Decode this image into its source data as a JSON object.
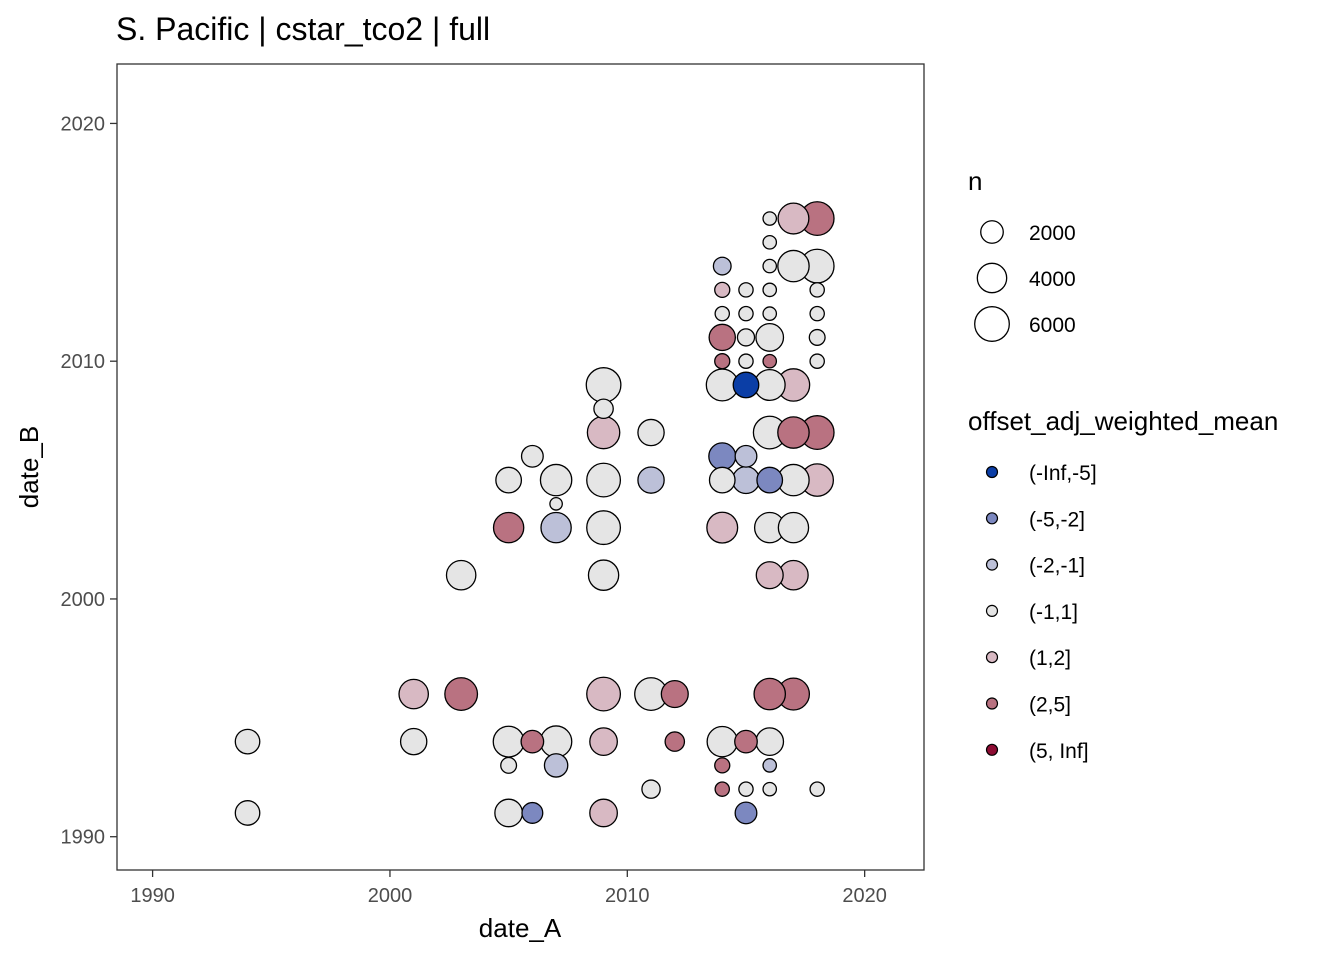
{
  "chart_data": {
    "type": "scatter",
    "title": "S. Pacific | cstar_tco2 | full",
    "xlabel": "date_A",
    "ylabel": "date_B",
    "xlim": [
      1988.5,
      2022.5
    ],
    "ylim": [
      1988.6,
      2022.5
    ],
    "x_ticks": [
      1990,
      2000,
      2010,
      2020
    ],
    "y_ticks": [
      1990,
      2000,
      2010,
      2020
    ],
    "grid": false,
    "legend_position": "right",
    "size_legend": {
      "title": "n",
      "entries": [
        {
          "label": "2000",
          "value": 2000
        },
        {
          "label": "4000",
          "value": 4000
        },
        {
          "label": "6000",
          "value": 6000
        }
      ]
    },
    "color_legend": {
      "title": "offset_adj_weighted_mean",
      "entries": [
        {
          "label": "(-Inf,-5]",
          "color": "#0b3ea6"
        },
        {
          "label": "(-5,-2]",
          "color": "#7c88c0"
        },
        {
          "label": "(-2,-1]",
          "color": "#bcc0d8"
        },
        {
          "label": "(-1,1]",
          "color": "#e5e5e5"
        },
        {
          "label": "(1,2]",
          "color": "#d8b9c3"
        },
        {
          "label": "(2,5]",
          "color": "#b97281"
        },
        {
          "label": "(5, Inf]",
          "color": "#8d0c33"
        }
      ]
    },
    "points": [
      {
        "x": 1994,
        "y": 1994,
        "n": 2500,
        "category": "(-1,1]"
      },
      {
        "x": 1994,
        "y": 1991,
        "n": 2500,
        "category": "(-1,1]"
      },
      {
        "x": 2001,
        "y": 1996,
        "n": 4000,
        "category": "(1,2]"
      },
      {
        "x": 2001,
        "y": 1994,
        "n": 3000,
        "category": "(-1,1]"
      },
      {
        "x": 2003,
        "y": 2001,
        "n": 4000,
        "category": "(-1,1]"
      },
      {
        "x": 2003,
        "y": 1996,
        "n": 5200,
        "category": "(2,5]"
      },
      {
        "x": 2005,
        "y": 2003,
        "n": 4300,
        "category": "(2,5]"
      },
      {
        "x": 2005,
        "y": 2005,
        "n": 2800,
        "category": "(-1,1]"
      },
      {
        "x": 2005,
        "y": 1994,
        "n": 4500,
        "category": "(-1,1]"
      },
      {
        "x": 2005,
        "y": 1993,
        "n": 700,
        "category": "(-1,1]"
      },
      {
        "x": 2005,
        "y": 1991,
        "n": 3400,
        "category": "(-1,1]"
      },
      {
        "x": 2006,
        "y": 2006,
        "n": 1800,
        "category": "(-1,1]"
      },
      {
        "x": 2006,
        "y": 1994,
        "n": 2000,
        "category": "(2,5]"
      },
      {
        "x": 2006,
        "y": 1991,
        "n": 1600,
        "category": "(-5,-2]"
      },
      {
        "x": 2007,
        "y": 2005,
        "n": 4700,
        "category": "(-1,1]"
      },
      {
        "x": 2007,
        "y": 2004,
        "n": 300,
        "category": "(-1,1]"
      },
      {
        "x": 2007,
        "y": 2003,
        "n": 4300,
        "category": "(-2,-1]"
      },
      {
        "x": 2007,
        "y": 1994,
        "n": 4700,
        "category": "(-1,1]"
      },
      {
        "x": 2007,
        "y": 1993,
        "n": 2200,
        "category": "(-2,-1]"
      },
      {
        "x": 2009,
        "y": 2009,
        "n": 6000,
        "category": "(-1,1]"
      },
      {
        "x": 2009,
        "y": 2008,
        "n": 1300,
        "category": "(-1,1]"
      },
      {
        "x": 2009,
        "y": 2007,
        "n": 5100,
        "category": "(1,2]"
      },
      {
        "x": 2009,
        "y": 2005,
        "n": 5600,
        "category": "(-1,1]"
      },
      {
        "x": 2009,
        "y": 2003,
        "n": 5600,
        "category": "(-1,1]"
      },
      {
        "x": 2009,
        "y": 2001,
        "n": 4300,
        "category": "(-1,1]"
      },
      {
        "x": 2009,
        "y": 1996,
        "n": 5600,
        "category": "(1,2]"
      },
      {
        "x": 2009,
        "y": 1994,
        "n": 3400,
        "category": "(1,2]"
      },
      {
        "x": 2009,
        "y": 1991,
        "n": 3400,
        "category": "(1,2]"
      },
      {
        "x": 2011,
        "y": 2007,
        "n": 3000,
        "category": "(-1,1]"
      },
      {
        "x": 2011,
        "y": 2005,
        "n": 3000,
        "category": "(-2,-1]"
      },
      {
        "x": 2011,
        "y": 1996,
        "n": 5200,
        "category": "(-1,1]"
      },
      {
        "x": 2011,
        "y": 1992,
        "n": 1100,
        "category": "(-1,1]"
      },
      {
        "x": 2012,
        "y": 1996,
        "n": 3200,
        "category": "(2,5]"
      },
      {
        "x": 2012,
        "y": 1994,
        "n": 1300,
        "category": "(2,5]"
      },
      {
        "x": 2014,
        "y": 2014,
        "n": 1000,
        "category": "(-2,-1]"
      },
      {
        "x": 2014,
        "y": 2013,
        "n": 600,
        "category": "(1,2]"
      },
      {
        "x": 2014,
        "y": 2012,
        "n": 500,
        "category": "(-1,1]"
      },
      {
        "x": 2014,
        "y": 2011,
        "n": 3000,
        "category": "(2,5]"
      },
      {
        "x": 2014,
        "y": 2010,
        "n": 600,
        "category": "(2,5]"
      },
      {
        "x": 2014,
        "y": 2009,
        "n": 4900,
        "category": "(-1,1]"
      },
      {
        "x": 2014,
        "y": 2006,
        "n": 3200,
        "category": "(-5,-2]"
      },
      {
        "x": 2014,
        "y": 2005,
        "n": 2800,
        "category": "(-1,1]"
      },
      {
        "x": 2014,
        "y": 2003,
        "n": 4500,
        "category": "(1,2]"
      },
      {
        "x": 2014,
        "y": 1994,
        "n": 4300,
        "category": "(-1,1]"
      },
      {
        "x": 2014,
        "y": 1993,
        "n": 600,
        "category": "(2,5]"
      },
      {
        "x": 2014,
        "y": 1992,
        "n": 500,
        "category": "(2,5]"
      },
      {
        "x": 2015,
        "y": 2013,
        "n": 500,
        "category": "(-1,1]"
      },
      {
        "x": 2015,
        "y": 2012,
        "n": 500,
        "category": "(-1,1]"
      },
      {
        "x": 2015,
        "y": 2011,
        "n": 900,
        "category": "(-1,1]"
      },
      {
        "x": 2015,
        "y": 2010,
        "n": 500,
        "category": "(-1,1]"
      },
      {
        "x": 2015,
        "y": 2009,
        "n": 2800,
        "category": "(-Inf,-5]"
      },
      {
        "x": 2015,
        "y": 2006,
        "n": 1800,
        "category": "(-2,-1]"
      },
      {
        "x": 2015,
        "y": 2005,
        "n": 3200,
        "category": "(-2,-1]"
      },
      {
        "x": 2015,
        "y": 1994,
        "n": 2000,
        "category": "(2,5]"
      },
      {
        "x": 2015,
        "y": 1992,
        "n": 500,
        "category": "(-1,1]"
      },
      {
        "x": 2015,
        "y": 1991,
        "n": 1800,
        "category": "(-5,-2]"
      },
      {
        "x": 2016,
        "y": 2016,
        "n": 400,
        "category": "(-1,1]"
      },
      {
        "x": 2016,
        "y": 2015,
        "n": 400,
        "category": "(-1,1]"
      },
      {
        "x": 2016,
        "y": 2014,
        "n": 400,
        "category": "(-1,1]"
      },
      {
        "x": 2016,
        "y": 2013,
        "n": 400,
        "category": "(-1,1]"
      },
      {
        "x": 2016,
        "y": 2012,
        "n": 400,
        "category": "(-1,1]"
      },
      {
        "x": 2016,
        "y": 2011,
        "n": 3400,
        "category": "(-1,1]"
      },
      {
        "x": 2016,
        "y": 2010,
        "n": 400,
        "category": "(2,5]"
      },
      {
        "x": 2016,
        "y": 2009,
        "n": 4500,
        "category": "(-1,1]"
      },
      {
        "x": 2016,
        "y": 2007,
        "n": 5200,
        "category": "(-1,1]"
      },
      {
        "x": 2016,
        "y": 2005,
        "n": 2800,
        "category": "(-5,-2]"
      },
      {
        "x": 2016,
        "y": 2003,
        "n": 4300,
        "category": "(-1,1]"
      },
      {
        "x": 2016,
        "y": 2001,
        "n": 3200,
        "category": "(1,2]"
      },
      {
        "x": 2016,
        "y": 1996,
        "n": 4700,
        "category": "(2,5]"
      },
      {
        "x": 2016,
        "y": 1994,
        "n": 3400,
        "category": "(-1,1]"
      },
      {
        "x": 2016,
        "y": 1993,
        "n": 400,
        "category": "(-2,-1]"
      },
      {
        "x": 2016,
        "y": 1992,
        "n": 400,
        "category": "(-1,1]"
      },
      {
        "x": 2017,
        "y": 2016,
        "n": 4500,
        "category": "(1,2]"
      },
      {
        "x": 2017,
        "y": 2014,
        "n": 4700,
        "category": "(-1,1]"
      },
      {
        "x": 2017,
        "y": 2009,
        "n": 5100,
        "category": "(1,2]"
      },
      {
        "x": 2017,
        "y": 2007,
        "n": 4700,
        "category": "(2,5]"
      },
      {
        "x": 2017,
        "y": 2005,
        "n": 4700,
        "category": "(-1,1]"
      },
      {
        "x": 2017,
        "y": 2003,
        "n": 4300,
        "category": "(-1,1]"
      },
      {
        "x": 2017,
        "y": 2001,
        "n": 4000,
        "category": "(1,2]"
      },
      {
        "x": 2017,
        "y": 1996,
        "n": 4900,
        "category": "(2,5]"
      },
      {
        "x": 2018,
        "y": 2016,
        "n": 5600,
        "category": "(2,5]"
      },
      {
        "x": 2018,
        "y": 2014,
        "n": 5600,
        "category": "(-1,1]"
      },
      {
        "x": 2018,
        "y": 2013,
        "n": 500,
        "category": "(-1,1]"
      },
      {
        "x": 2018,
        "y": 2012,
        "n": 500,
        "category": "(-1,1]"
      },
      {
        "x": 2018,
        "y": 2011,
        "n": 700,
        "category": "(-1,1]"
      },
      {
        "x": 2018,
        "y": 2010,
        "n": 500,
        "category": "(-1,1]"
      },
      {
        "x": 2018,
        "y": 2007,
        "n": 5600,
        "category": "(2,5]"
      },
      {
        "x": 2018,
        "y": 2005,
        "n": 5100,
        "category": "(1,2]"
      },
      {
        "x": 2018,
        "y": 1992,
        "n": 500,
        "category": "(-1,1]"
      }
    ]
  }
}
